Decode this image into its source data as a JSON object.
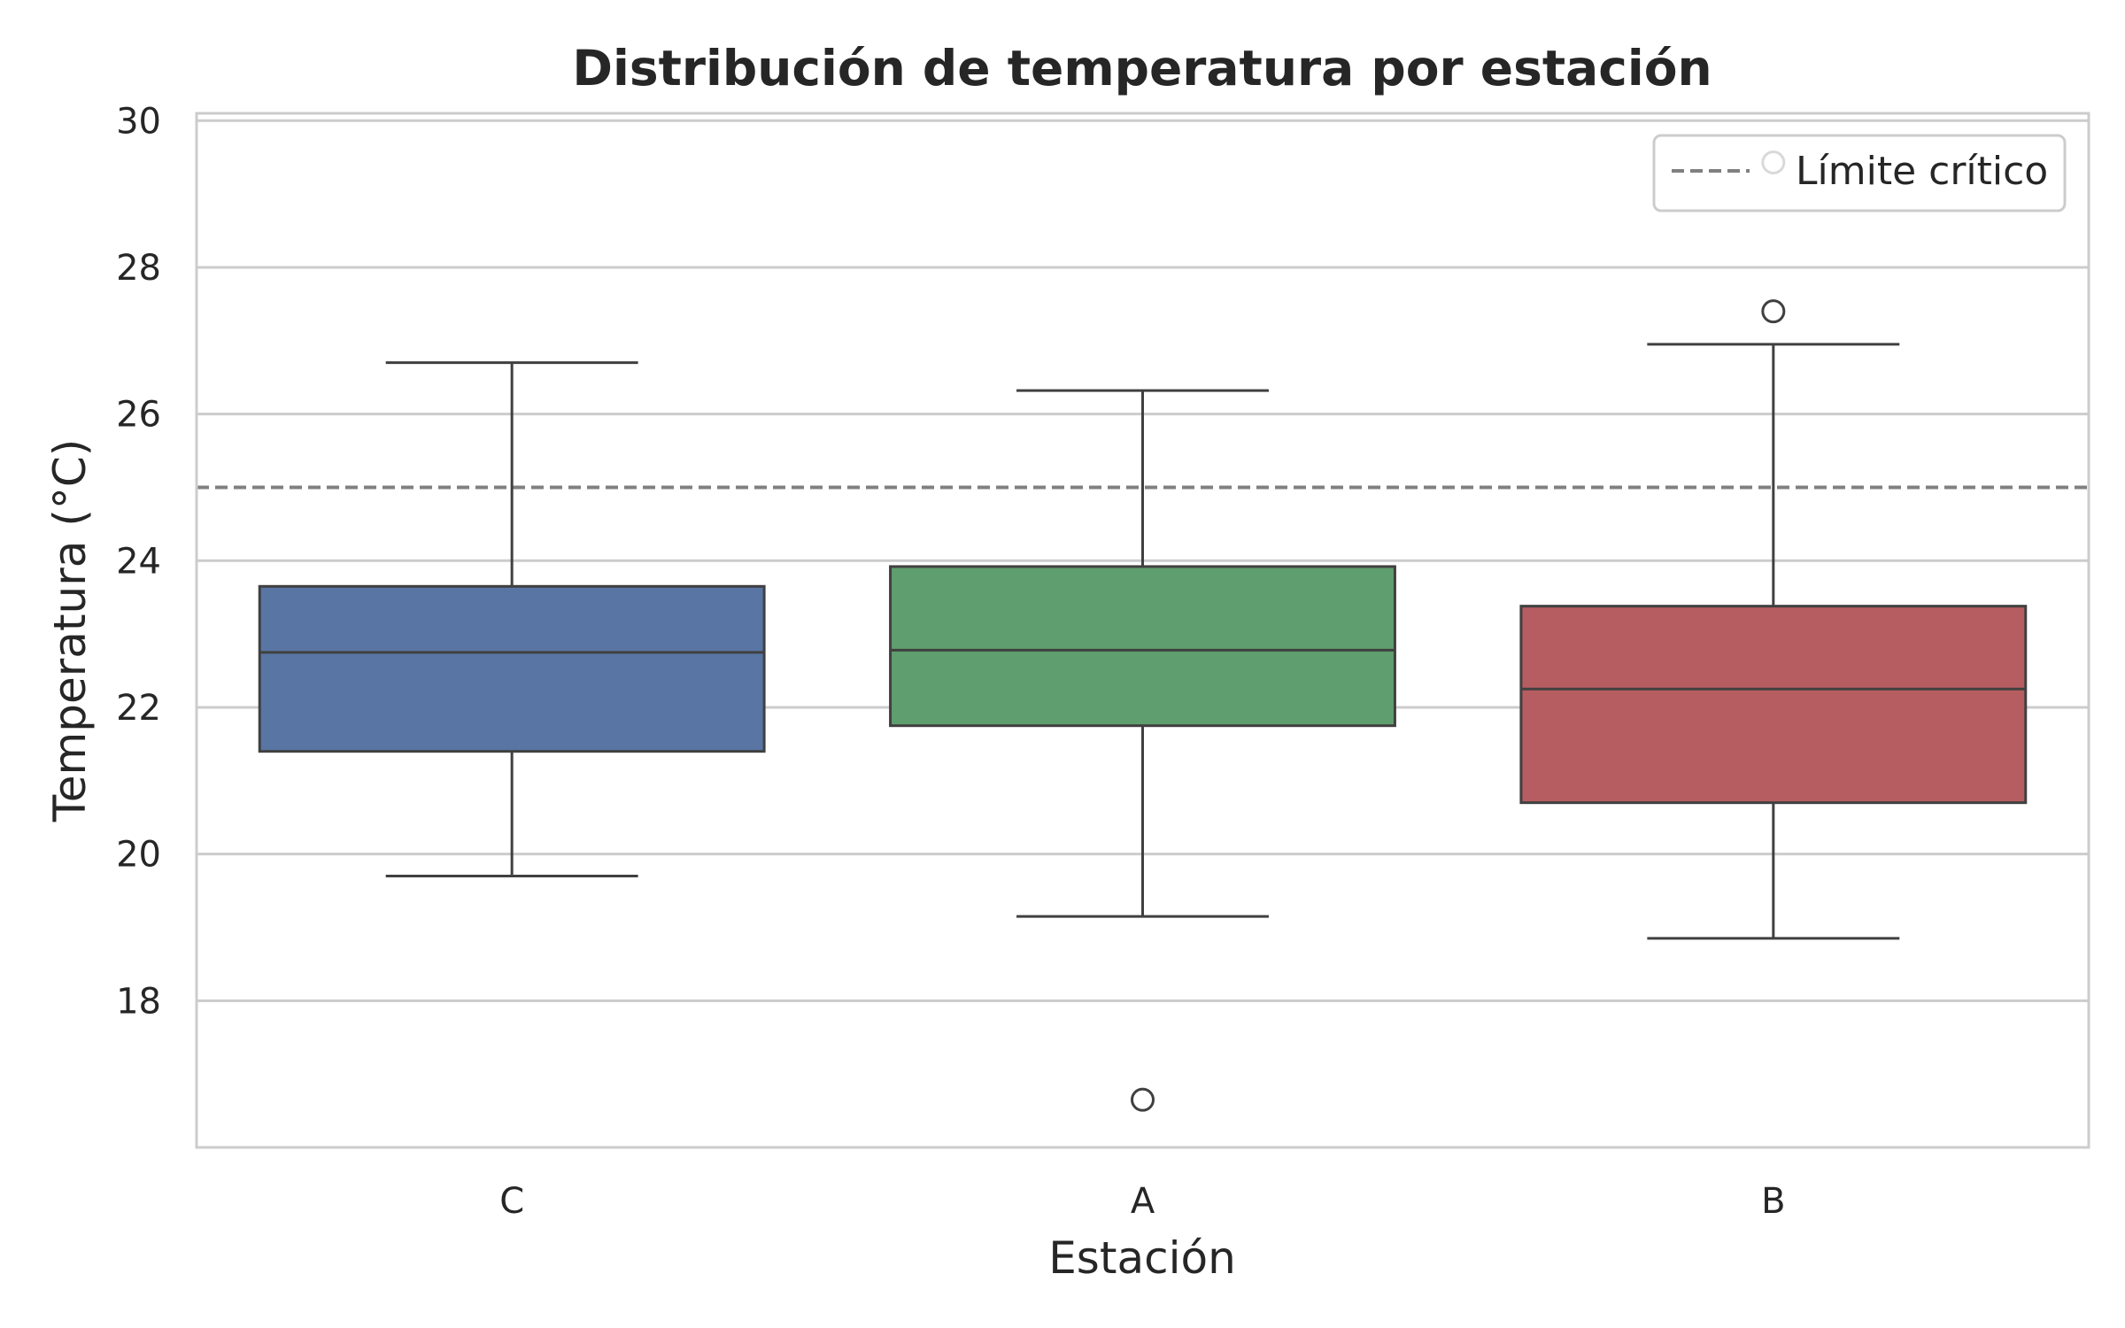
{
  "chart_data": {
    "type": "box",
    "title": "Distribución de temperatura por estación",
    "xlabel": "Estación",
    "ylabel": "Temperatura (°C)",
    "categories": [
      "C",
      "A",
      "B"
    ],
    "ylim": [
      16,
      30.1
    ],
    "yticks": [
      18,
      20,
      22,
      24,
      26,
      28,
      30
    ],
    "grid": "horizontal",
    "series": [
      {
        "category": "C",
        "color": "#5875a4",
        "whisker_low": 19.7,
        "q1": 21.4,
        "median": 22.75,
        "q3": 23.65,
        "whisker_high": 26.7,
        "outliers": []
      },
      {
        "category": "A",
        "color": "#5f9e6e",
        "whisker_low": 19.15,
        "q1": 21.75,
        "median": 22.78,
        "q3": 23.92,
        "whisker_high": 26.32,
        "outliers": [
          16.65
        ]
      },
      {
        "category": "B",
        "color": "#b55d60",
        "whisker_low": 18.85,
        "q1": 20.7,
        "median": 22.25,
        "q3": 23.38,
        "whisker_high": 26.95,
        "outliers": [
          27.4,
          29.43
        ]
      }
    ],
    "reference_line": {
      "y": 25,
      "label": "Límite crítico",
      "style": "dashed",
      "color": "#808080"
    },
    "legend": {
      "position": "top-right",
      "entries": [
        "Límite crítico"
      ]
    }
  }
}
